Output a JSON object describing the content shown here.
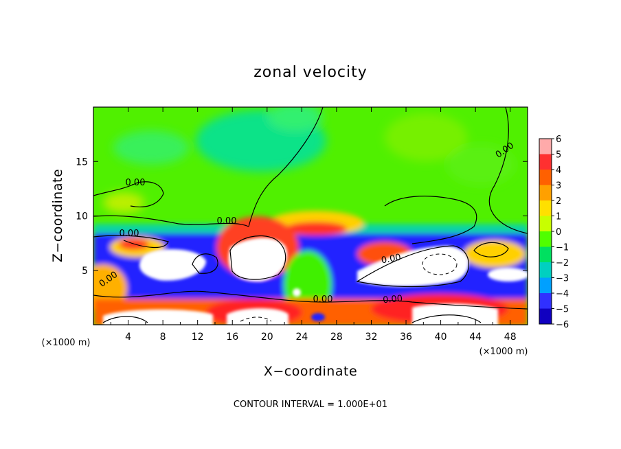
{
  "chart_data": {
    "type": "heatmap",
    "title": "zonal velocity",
    "xlabel": "X−coordinate",
    "ylabel": "Z−coordinate",
    "x_unit": "(×1000 m)",
    "y_unit": "(×1000 m)",
    "xlim": [
      0,
      50
    ],
    "ylim": [
      0,
      20
    ],
    "x_ticks": [
      "4",
      "8",
      "12",
      "16",
      "20",
      "24",
      "28",
      "32",
      "36",
      "40",
      "44",
      "48"
    ],
    "y_ticks": [
      "5",
      "10",
      "15"
    ],
    "colorbar": {
      "min": -6,
      "max": 6,
      "labels": [
        "6",
        "5",
        "4",
        "3",
        "2",
        "1",
        "0",
        "−1",
        "−2",
        "−3",
        "−4",
        "−5",
        "−6"
      ],
      "colors": [
        "#ffaaaa",
        "#ff3030",
        "#ff6000",
        "#ffa000",
        "#ffe000",
        "#c8ff00",
        "#50ff00",
        "#00e060",
        "#00d0c0",
        "#00a0ff",
        "#3030ff",
        "#1000c0",
        "#8000a0"
      ]
    },
    "contour_labels": [
      "0.00",
      "0.00",
      "0.00",
      "0.00",
      "0.00",
      "0.00",
      "0.00",
      "0.00"
    ],
    "footer": "CONTOUR INTERVAL = 1.000E+01"
  }
}
